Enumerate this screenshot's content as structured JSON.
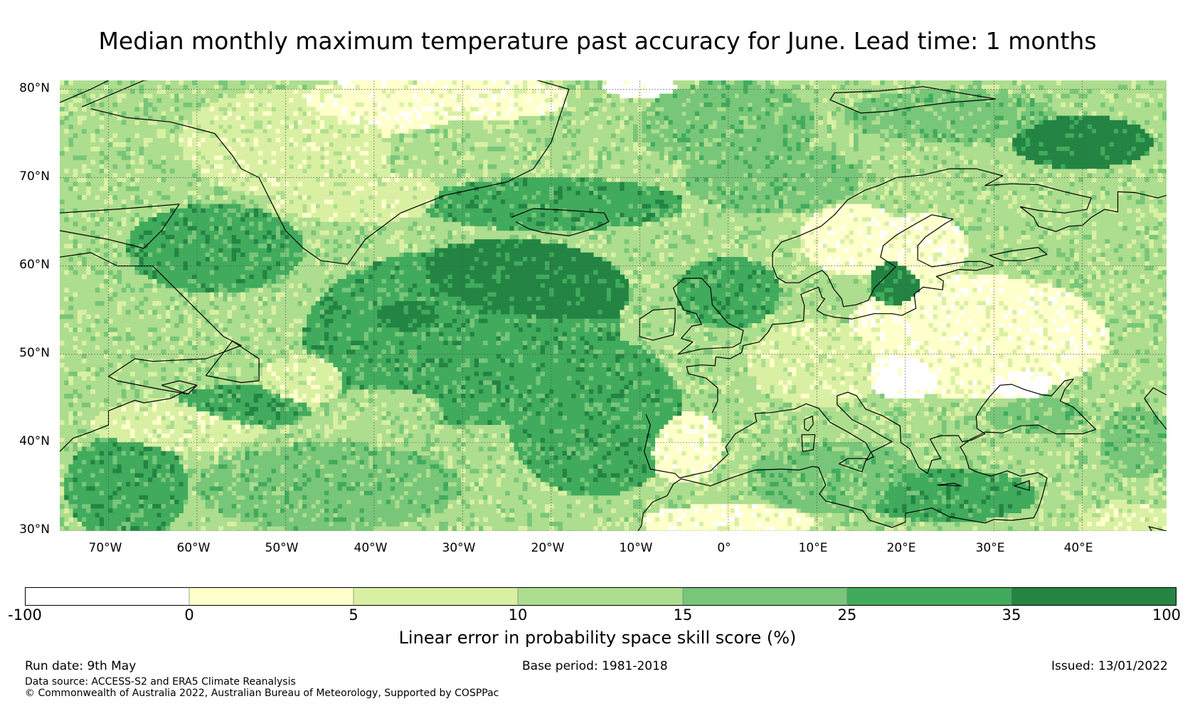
{
  "title": "Median monthly maximum temperature past accuracy for June. Lead time: 1 months",
  "map": {
    "lat_labels": [
      "80°N",
      "70°N",
      "60°N",
      "50°N",
      "40°N",
      "30°N"
    ],
    "lon_labels": [
      "70°W",
      "60°W",
      "50°W",
      "40°W",
      "30°W",
      "20°W",
      "10°W",
      "0°",
      "10°E",
      "20°E",
      "30°E",
      "40°E"
    ],
    "lat_range": [
      30,
      81
    ],
    "lon_range": [
      -75.5,
      49.5
    ],
    "grid": true
  },
  "colorbar": {
    "ticks": [
      "-100",
      "0",
      "5",
      "10",
      "15",
      "25",
      "35",
      "100"
    ],
    "colors": [
      "#ffffff",
      "#ffffcc",
      "#d9f0a3",
      "#addd8e",
      "#78c679",
      "#41ab5d",
      "#238443"
    ],
    "label": "Linear error in probability space skill score (%)"
  },
  "footer": {
    "run_date": "Run date: 9th May",
    "base_period": "Base period: 1981-2018",
    "issued": "Issued: 13/01/2022",
    "data_source": "Data source: ACCESS-S2 and ERA5 Climate Reanalysis",
    "copyright": "© Commonwealth of Australia 2022, Australian Bureau of Meteorology, Supported by COSPPac"
  }
}
